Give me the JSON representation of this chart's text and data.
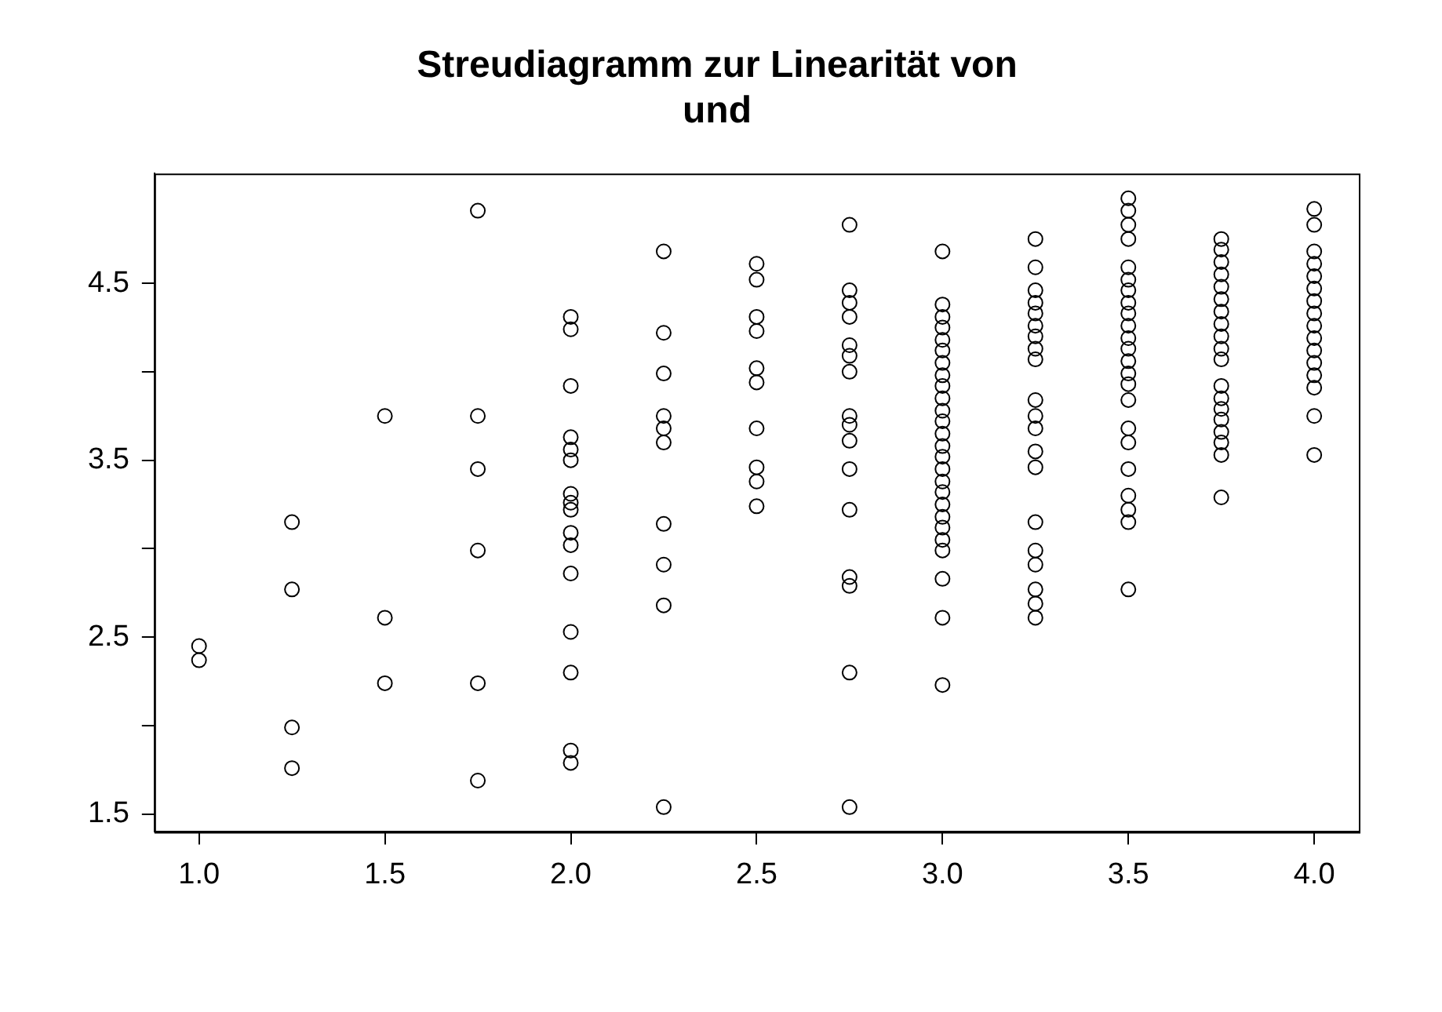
{
  "chart_data": {
    "type": "scatter",
    "title": "Streudiagramm zur Linearität von\nund",
    "marker": "circle",
    "grid": false,
    "legend": false,
    "xlim": [
      0.88,
      4.12
    ],
    "xticks": [
      {
        "value": 1,
        "label": "1.0"
      },
      {
        "value": 1.5,
        "label": "1.5"
      },
      {
        "value": 2,
        "label": "2.0"
      },
      {
        "value": 2.5,
        "label": "2.5"
      },
      {
        "value": 3,
        "label": "3.0"
      },
      {
        "value": 3.5,
        "label": "3.5"
      },
      {
        "value": 4,
        "label": "4.0"
      }
    ],
    "ylim": [
      1.4,
      5.12
    ],
    "yticks": [
      1.5,
      {
        "value": 2,
        "label": null
      },
      2.5,
      {
        "value": 3,
        "label": null
      },
      3.5,
      {
        "value": 4,
        "label": null
      },
      4.5
    ],
    "series": [
      {
        "color": "#000000",
        "x": [
          1,
          1,
          1.25,
          1.25,
          1.25,
          1.25,
          1.5,
          1.5,
          1.5,
          1.75,
          1.75,
          1.75,
          1.75,
          1.75,
          1.75,
          2,
          2,
          2,
          2,
          2,
          2,
          2,
          2,
          2,
          2,
          2,
          2,
          2,
          2,
          2,
          2,
          2.25,
          2.25,
          2.25,
          2.25,
          2.25,
          2.25,
          2.25,
          2.25,
          2.25,
          2.25,
          2.5,
          2.5,
          2.5,
          2.5,
          2.5,
          2.5,
          2.5,
          2.5,
          2.5,
          2.5,
          2.75,
          2.75,
          2.75,
          2.75,
          2.75,
          2.75,
          2.75,
          2.75,
          2.75,
          2.75,
          2.75,
          2.75,
          2.75,
          2.75,
          2.75,
          2.75,
          3,
          3,
          3,
          3,
          3,
          3,
          3,
          3,
          3,
          3,
          3,
          3,
          3,
          3,
          3,
          3,
          3,
          3,
          3,
          3,
          3,
          3,
          3,
          3,
          3,
          3,
          3.25,
          3.25,
          3.25,
          3.25,
          3.25,
          3.25,
          3.25,
          3.25,
          3.25,
          3.25,
          3.25,
          3.25,
          3.25,
          3.25,
          3.25,
          3.25,
          3.25,
          3.25,
          3.25,
          3.25,
          3.5,
          3.5,
          3.5,
          3.5,
          3.5,
          3.5,
          3.5,
          3.5,
          3.5,
          3.5,
          3.5,
          3.5,
          3.5,
          3.5,
          3.5,
          3.5,
          3.5,
          3.5,
          3.5,
          3.5,
          3.5,
          3.5,
          3.5,
          3.75,
          3.75,
          3.75,
          3.75,
          3.75,
          3.75,
          3.75,
          3.75,
          3.75,
          3.75,
          3.75,
          3.75,
          3.75,
          3.75,
          3.75,
          3.75,
          3.75,
          3.75,
          3.75,
          4,
          4,
          4,
          4,
          4,
          4,
          4,
          4,
          4,
          4,
          4,
          4,
          4,
          4,
          4,
          4
        ],
        "values": [
          2.45,
          2.37,
          3.15,
          2.77,
          1.99,
          1.76,
          3.75,
          2.61,
          2.24,
          4.91,
          3.75,
          3.45,
          2.99,
          2.24,
          1.69,
          4.31,
          4.24,
          3.92,
          3.63,
          3.56,
          3.5,
          3.31,
          3.26,
          3.22,
          3.09,
          3.02,
          2.86,
          2.53,
          2.3,
          1.86,
          1.79,
          4.68,
          4.22,
          3.99,
          3.75,
          3.68,
          3.6,
          3.14,
          2.91,
          2.68,
          1.54,
          4.61,
          4.52,
          4.31,
          4.23,
          4.02,
          3.94,
          3.68,
          3.46,
          3.38,
          3.24,
          4.83,
          4.46,
          4.39,
          4.31,
          4.15,
          4.09,
          4.0,
          3.75,
          3.7,
          3.61,
          3.45,
          3.22,
          2.84,
          2.79,
          2.3,
          1.54,
          4.68,
          4.38,
          4.31,
          4.25,
          4.18,
          4.12,
          4.05,
          3.98,
          3.92,
          3.85,
          3.78,
          3.72,
          3.65,
          3.58,
          3.52,
          3.45,
          3.38,
          3.32,
          3.25,
          3.18,
          3.12,
          3.05,
          2.99,
          2.83,
          2.61,
          2.23,
          4.75,
          4.59,
          4.46,
          4.39,
          4.33,
          4.26,
          4.2,
          4.13,
          4.07,
          3.84,
          3.75,
          3.68,
          3.55,
          3.46,
          3.15,
          2.99,
          2.91,
          2.77,
          2.69,
          2.61,
          4.98,
          4.91,
          4.83,
          4.75,
          4.59,
          4.52,
          4.46,
          4.39,
          4.33,
          4.26,
          4.19,
          4.13,
          4.06,
          3.99,
          3.93,
          3.84,
          3.68,
          3.6,
          3.45,
          3.3,
          3.22,
          3.15,
          2.77,
          4.75,
          4.69,
          4.62,
          4.55,
          4.48,
          4.41,
          4.34,
          4.27,
          4.2,
          4.13,
          4.07,
          3.92,
          3.85,
          3.79,
          3.73,
          3.66,
          3.6,
          3.53,
          3.29,
          4.92,
          4.83,
          4.68,
          4.61,
          4.54,
          4.47,
          4.4,
          4.33,
          4.26,
          4.19,
          4.12,
          4.05,
          3.98,
          3.91,
          3.75,
          3.53
        ]
      }
    ]
  }
}
